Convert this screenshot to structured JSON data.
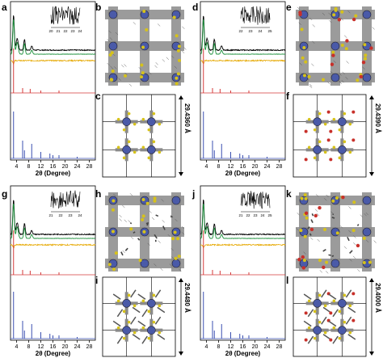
{
  "panel_letters": [
    "a",
    "b",
    "c",
    "d",
    "e",
    "f",
    "g",
    "h",
    "i",
    "j",
    "k",
    "l"
  ],
  "xrd": {
    "axis_label": "2θ (Degree)",
    "x_ticks": [
      "4",
      "8",
      "12",
      "16",
      "20",
      "24",
      "28"
    ],
    "inset_ticks_a": [
      "20",
      "21",
      "22",
      "23",
      "24"
    ],
    "inset_ticks_d": [
      "22",
      "23",
      "24",
      "25"
    ],
    "inset_ticks_g": [
      "21",
      "22",
      "23",
      "24"
    ],
    "inset_ticks_j": [
      "21",
      "22",
      "23",
      "24",
      "25"
    ]
  },
  "dimensions": {
    "c": "29.4360 Å",
    "f": "29.4390 Å",
    "i": "29.4480 Å",
    "l": "29.4000 Å"
  },
  "colors": {
    "experimental": "#000000",
    "refined": "#1a8f3a",
    "difference": "#e6a800",
    "simulated_a": "#d43a3a",
    "simulated_b": "#3a4fb0",
    "framework": "#8a8a8a",
    "metal_node": "#4a5aa8",
    "sulfur": "#d6c21a",
    "oxygen": "#c8302a"
  },
  "chart_data": [
    {
      "type": "line",
      "panel": "a",
      "xlabel": "2θ (Degree)",
      "x_ticks": [
        4,
        8,
        12,
        16,
        20,
        24,
        28
      ],
      "peaks_2theta": [
        3.0,
        6.0,
        6.6,
        9.0,
        12.0,
        15.0,
        18.0,
        24.0
      ]
    },
    {
      "type": "line",
      "panel": "d",
      "xlabel": "2θ (Degree)",
      "x_ticks": [
        4,
        8,
        12,
        16,
        20,
        24,
        28
      ],
      "peaks_2theta": [
        3.0,
        6.0,
        6.6,
        9.0,
        12.0,
        15.0,
        18.0,
        24.0
      ]
    },
    {
      "type": "line",
      "panel": "g",
      "xlabel": "2θ (Degree)",
      "x_ticks": [
        4,
        8,
        12,
        16,
        20,
        24,
        28
      ],
      "peaks_2theta": [
        3.0,
        6.0,
        6.6,
        9.0,
        12.0,
        15.0,
        18.0,
        24.0
      ]
    },
    {
      "type": "line",
      "panel": "j",
      "xlabel": "2θ (Degree)",
      "x_ticks": [
        4,
        8,
        12,
        16,
        20,
        24,
        28
      ],
      "peaks_2theta": [
        3.0,
        6.0,
        6.6,
        9.0,
        12.0,
        15.0,
        18.0,
        24.0
      ]
    }
  ]
}
